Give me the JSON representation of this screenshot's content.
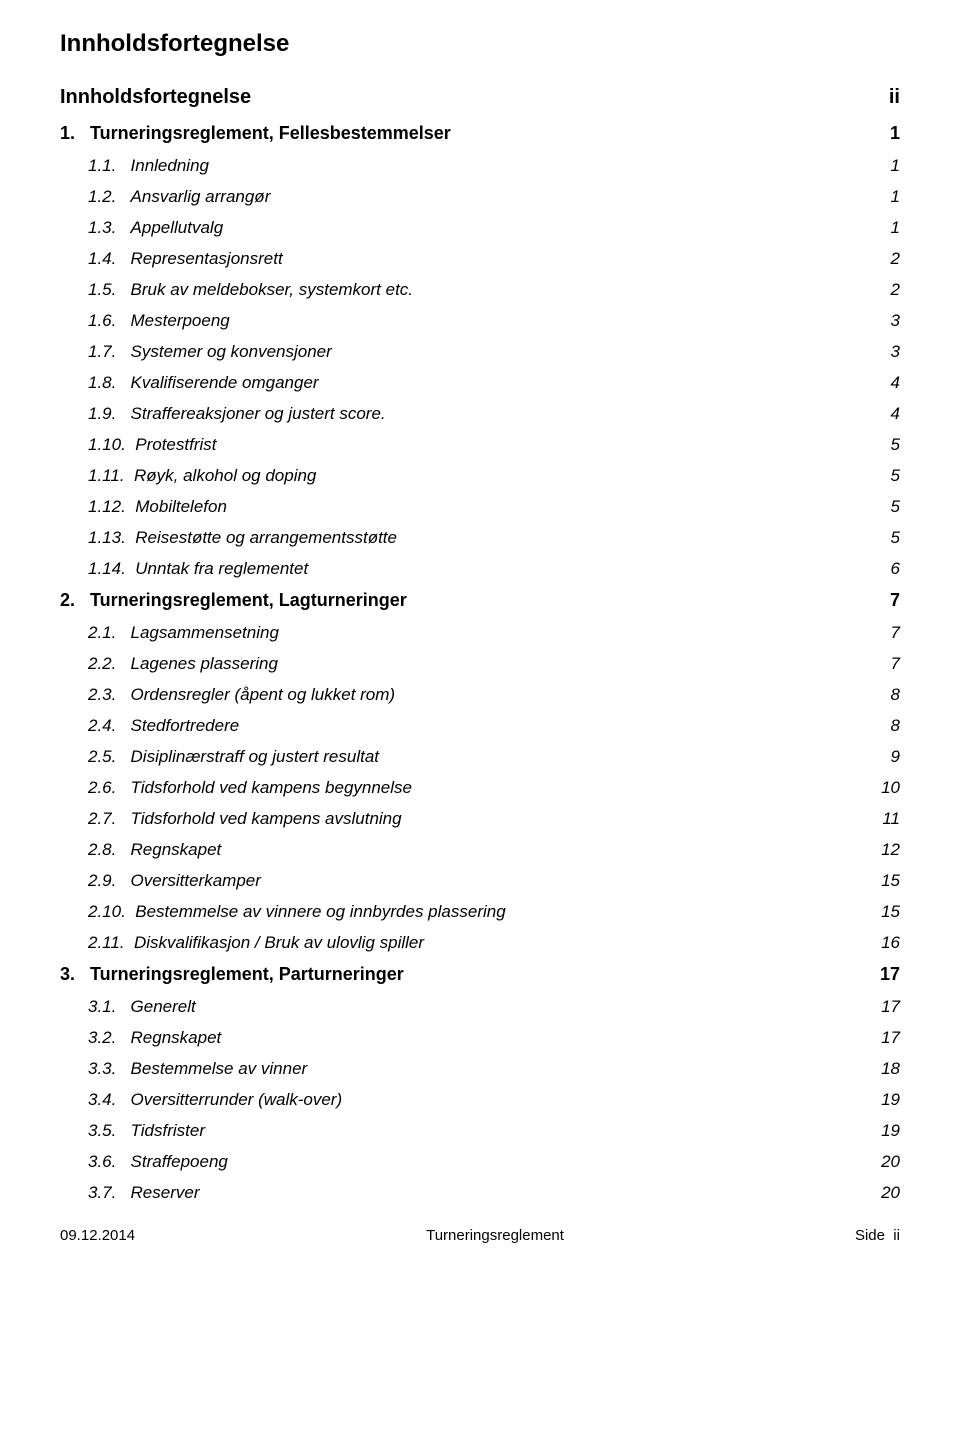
{
  "title": "Innholdsfortegnelse",
  "toc": [
    {
      "level": 0,
      "label": "Innholdsfortegnelse",
      "page": "ii"
    },
    {
      "level": 1,
      "label": "1.   Turneringsreglement, Fellesbestemmelser",
      "page": "1"
    },
    {
      "level": 2,
      "label": "1.1.   Innledning",
      "page": "1"
    },
    {
      "level": 2,
      "label": "1.2.   Ansvarlig arrangør",
      "page": "1"
    },
    {
      "level": 2,
      "label": "1.3.   Appellutvalg",
      "page": "1"
    },
    {
      "level": 2,
      "label": "1.4.   Representasjonsrett",
      "page": "2"
    },
    {
      "level": 2,
      "label": "1.5.   Bruk av meldebokser, systemkort etc.",
      "page": "2"
    },
    {
      "level": 2,
      "label": "1.6.   Mesterpoeng",
      "page": "3"
    },
    {
      "level": 2,
      "label": "1.7.   Systemer og konvensjoner",
      "page": "3"
    },
    {
      "level": 2,
      "label": "1.8.   Kvalifiserende omganger",
      "page": "4"
    },
    {
      "level": 2,
      "label": "1.9.   Straffereaksjoner og justert score.",
      "page": "4"
    },
    {
      "level": 2,
      "label": "1.10.  Protestfrist",
      "page": "5"
    },
    {
      "level": 2,
      "label": "1.11.  Røyk, alkohol og doping",
      "page": "5"
    },
    {
      "level": 2,
      "label": "1.12.  Mobiltelefon",
      "page": "5"
    },
    {
      "level": 2,
      "label": "1.13.  Reisestøtte og arrangementsstøtte",
      "page": "5"
    },
    {
      "level": 2,
      "label": "1.14.  Unntak fra reglementet",
      "page": "6"
    },
    {
      "level": 1,
      "label": "2.   Turneringsreglement, Lagturneringer",
      "page": "7"
    },
    {
      "level": 2,
      "label": "2.1.   Lagsammensetning",
      "page": "7"
    },
    {
      "level": 2,
      "label": "2.2.   Lagenes plassering",
      "page": "7"
    },
    {
      "level": 2,
      "label": "2.3.   Ordensregler (åpent og lukket rom)",
      "page": "8"
    },
    {
      "level": 2,
      "label": "2.4.   Stedfortredere",
      "page": "8"
    },
    {
      "level": 2,
      "label": "2.5.   Disiplinærstraff og justert resultat",
      "page": "9"
    },
    {
      "level": 2,
      "label": "2.6.   Tidsforhold ved kampens begynnelse",
      "page": "10"
    },
    {
      "level": 2,
      "label": "2.7.   Tidsforhold ved kampens avslutning",
      "page": "11"
    },
    {
      "level": 2,
      "label": "2.8.   Regnskapet",
      "page": "12"
    },
    {
      "level": 2,
      "label": "2.9.   Oversitterkamper",
      "page": "15"
    },
    {
      "level": 2,
      "label": "2.10.  Bestemmelse av vinnere og innbyrdes plassering",
      "page": "15"
    },
    {
      "level": 2,
      "label": "2.11.  Diskvalifikasjon / Bruk av ulovlig spiller",
      "page": "16"
    },
    {
      "level": 1,
      "label": "3.   Turneringsreglement, Parturneringer",
      "page": "17"
    },
    {
      "level": 2,
      "label": "3.1.   Generelt",
      "page": "17"
    },
    {
      "level": 2,
      "label": "3.2.   Regnskapet",
      "page": "17"
    },
    {
      "level": 2,
      "label": "3.3.   Bestemmelse av vinner",
      "page": "18"
    },
    {
      "level": 2,
      "label": "3.4.   Oversitterrunder (walk-over)",
      "page": "19"
    },
    {
      "level": 2,
      "label": "3.5.   Tidsfrister",
      "page": "19"
    },
    {
      "level": 2,
      "label": "3.6.   Straffepoeng",
      "page": "20"
    },
    {
      "level": 2,
      "label": "3.7.   Reserver",
      "page": "20"
    }
  ],
  "footer": {
    "left": "09.12.2014",
    "center": "Turneringsreglement",
    "right": "Side  ii"
  },
  "styles": {
    "page_bg": "#ffffff",
    "text_color": "#000000",
    "title_fontsize": 24,
    "level0_fontsize": 20,
    "level1_fontsize": 18,
    "level2_fontsize": 17,
    "footer_fontsize": 15
  }
}
